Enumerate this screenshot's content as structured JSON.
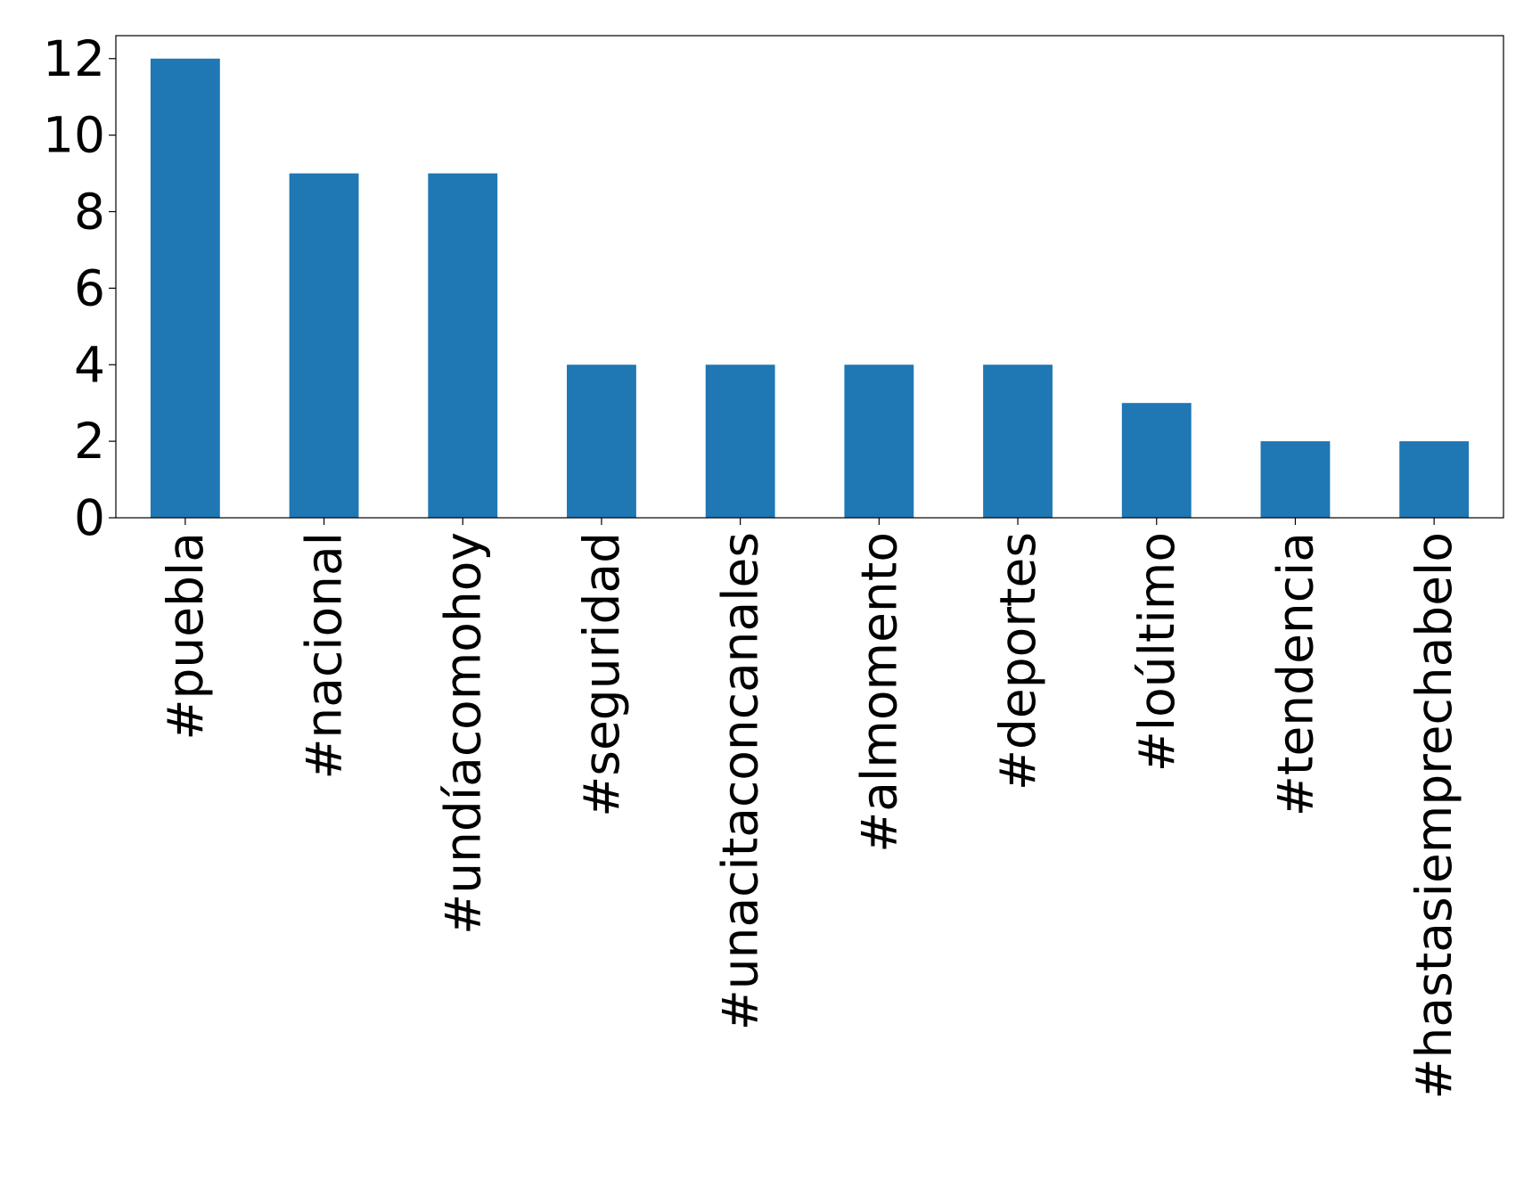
{
  "chart_data": {
    "type": "bar",
    "categories": [
      "#puebla",
      "#nacional",
      "#undíacomohoy",
      "#seguridad",
      "#unacitaconcanales",
      "#almomento",
      "#deportes",
      "#loúltimo",
      "#tendencia",
      "#hastasiemprechabelo"
    ],
    "values": [
      12,
      9,
      9,
      4,
      4,
      4,
      4,
      3,
      2,
      2
    ],
    "color": "#1f77b4",
    "ylim": [
      0,
      12.6
    ],
    "yticks": [
      0,
      2,
      4,
      6,
      8,
      10,
      12
    ],
    "grid": false
  }
}
